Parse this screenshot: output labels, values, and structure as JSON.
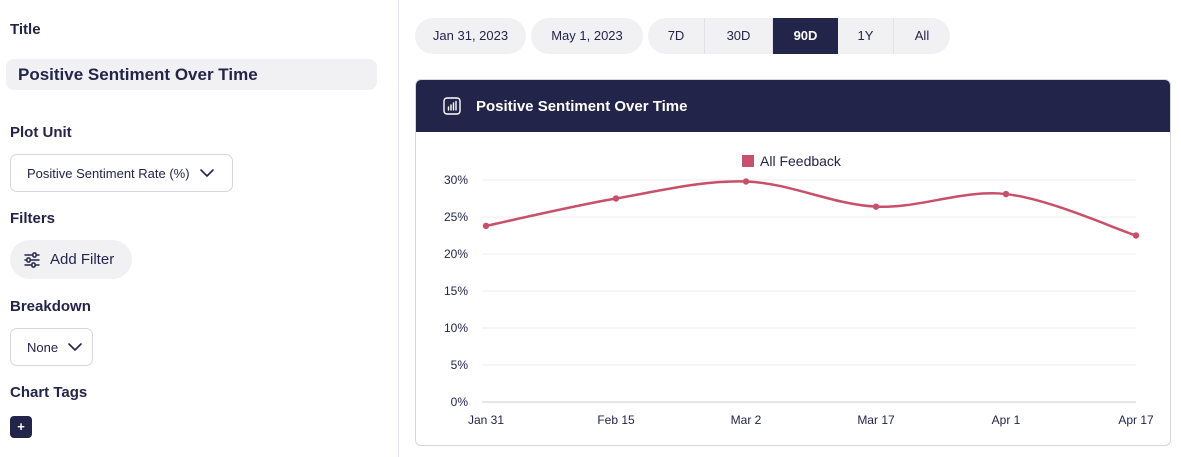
{
  "left_panel": {
    "title_label": "Title",
    "title_value": "Positive Sentiment Over Time",
    "plot_unit_label": "Plot Unit",
    "plot_unit_value": "Positive Sentiment Rate (%)",
    "filters_label": "Filters",
    "add_filter_label": "Add Filter",
    "breakdown_label": "Breakdown",
    "breakdown_value": "None",
    "chart_tags_label": "Chart Tags",
    "add_tag_label": "+"
  },
  "date_range": {
    "start": "Jan 31, 2023",
    "end": "May 1, 2023",
    "options": [
      "7D",
      "30D",
      "90D",
      "1Y",
      "All"
    ],
    "active": "90D"
  },
  "chart_card": {
    "title": "Positive Sentiment Over Time",
    "icon": "bar-chart-icon"
  },
  "colors": {
    "navy": "#23244a",
    "series": "#c9506a"
  },
  "chart_data": {
    "type": "line",
    "title": "Positive Sentiment Over Time",
    "x": [
      "Jan 31",
      "Feb 15",
      "Mar 2",
      "Mar 17",
      "Apr 1",
      "Apr 17"
    ],
    "series": [
      {
        "name": "All Feedback",
        "values": [
          23.8,
          27.5,
          29.8,
          26.4,
          28.1,
          22.5
        ]
      }
    ],
    "ylim": [
      0,
      30
    ],
    "yticks": [
      0,
      5,
      10,
      15,
      20,
      25,
      30
    ],
    "ytick_labels": [
      "0%",
      "5%",
      "10%",
      "15%",
      "20%",
      "25%",
      "30%"
    ],
    "legend_position": "top-center",
    "grid": true
  }
}
